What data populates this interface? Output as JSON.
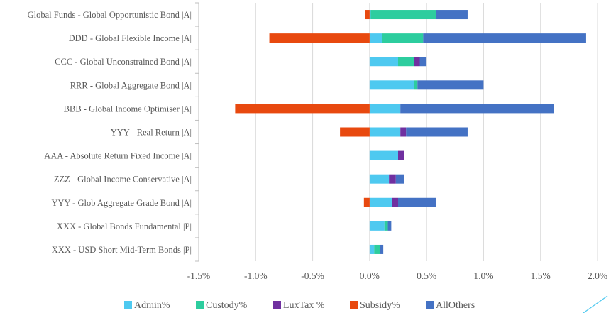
{
  "chart_data": {
    "type": "bar",
    "orientation": "horizontal",
    "stacked": true,
    "categories": [
      "Global Funds - Global Opportunistic Bond |A|",
      "DDD - Global Flexible Income |A|",
      "CCC - Global Unconstrained Bond |A|",
      "RRR - Global Aggregate Bond |A|",
      "BBB - Global Income Optimiser |A|",
      "YYY - Real Return |A|",
      "AAA - Absolute Return Fixed Income |A|",
      "ZZZ - Global Income Conservative |A|",
      "YYY - Glob Aggregate Grade Bond |A|",
      "XXX - Global Bonds Fundamental |P|",
      "XXX - USD Short Mid-Term Bonds |P|"
    ],
    "series": [
      {
        "name": "Admin%",
        "color": "#4EC9F0",
        "values": [
          0.0001,
          0.0011,
          0.0025,
          0.0039,
          0.0027,
          0.0027,
          0.0025,
          0.0017,
          0.002,
          0.0013,
          0.0004
        ]
      },
      {
        "name": "Custody%",
        "color": "#2DCD9E",
        "values": [
          0.0057,
          0.0036,
          0.0014,
          0.0003,
          0.0,
          0.0,
          0.0,
          0.0,
          0.0,
          0.0003,
          0.0005
        ]
      },
      {
        "name": "LuxTax %",
        "color": "#7030A0",
        "values": [
          0.0,
          0.0,
          0.0005,
          0.0,
          0.0,
          0.0005,
          0.0005,
          0.0006,
          0.0005,
          0.0,
          0.0
        ]
      },
      {
        "name": "Subsidy%",
        "color": "#E8490F",
        "values": [
          -0.0004,
          -0.0088,
          0.0,
          0.0,
          -0.0118,
          -0.0026,
          0.0,
          0.0,
          -0.0005,
          0.0,
          0.0
        ]
      },
      {
        "name": "AllOthers",
        "color": "#4472C4",
        "values": [
          0.0028,
          0.0143,
          0.0006,
          0.0058,
          0.0135,
          0.0054,
          0.0,
          0.0007,
          0.0033,
          0.0003,
          0.0003
        ]
      }
    ],
    "xlim": [
      -0.015,
      0.02
    ],
    "xticks": [
      -0.015,
      -0.01,
      -0.005,
      0,
      0.005,
      0.01,
      0.015,
      0.02
    ],
    "xtick_labels": [
      "-1.5%",
      "-1.0%",
      "-0.5%",
      "0.0%",
      "0.5%",
      "1.0%",
      "1.5%",
      "2.0%"
    ],
    "grid": "vertical",
    "legend": "bottom",
    "title": "",
    "xlabel": "",
    "ylabel": ""
  }
}
